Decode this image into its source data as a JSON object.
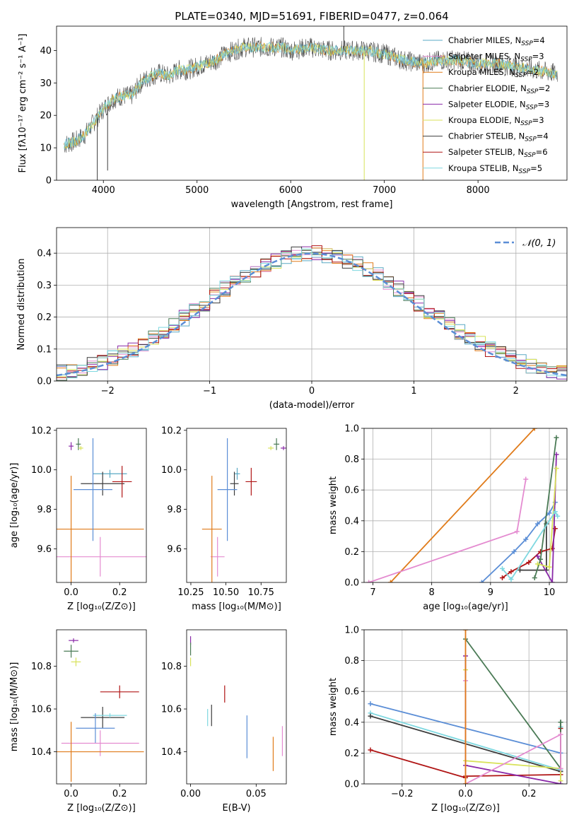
{
  "colors": {
    "ChabrierMILES": "#5aa9c4",
    "SalpeterMILES": "#e48bd0",
    "KroupaMILES": "#e07b1a",
    "ChabrierELODIE": "#4a7a55",
    "SalpeterELODIE": "#8a2aa8",
    "KroupaELODIE": "#d8e25a",
    "ChabrierSTELIB": "#3d3d3d",
    "SalpeterSTELIB": "#b01515",
    "KroupaSTELIB": "#7fd8e0",
    "miles_line": "#e8873a",
    "gauss": "#5b8ed6"
  },
  "chart_data": [
    {
      "id": "spectrum",
      "type": "line",
      "title": "PLATE=0340, MJD=51691, FIBERID=0477, z=0.064",
      "xlabel": "wavelength [Angstrom, rest frame]",
      "ylabel": "Flux [fλ10⁻¹⁷ erg cm⁻² s⁻¹ A⁻¹]",
      "xlim": [
        3500,
        8950
      ],
      "ylim": [
        0,
        47.5
      ],
      "xticks": [
        4000,
        5000,
        6000,
        7000,
        8000
      ],
      "yticks": [
        0,
        10,
        20,
        30,
        40
      ],
      "legend_position": "top-right",
      "legend": [
        {
          "key": "ChabrierMILES",
          "name": "Chabrier MILES",
          "n": "4"
        },
        {
          "key": "SalpeterMILES",
          "name": "Salpeter MILES",
          "n": "3"
        },
        {
          "key": "KroupaMILES",
          "name": "Kroupa MILES",
          "n": "2"
        },
        {
          "key": "ChabrierELODIE",
          "name": "Chabrier ELODIE",
          "n": "2"
        },
        {
          "key": "SalpeterELODIE",
          "name": "Salpeter ELODIE",
          "n": "3"
        },
        {
          "key": "KroupaELODIE",
          "name": "Kroupa ELODIE",
          "n": "3"
        },
        {
          "key": "ChabrierSTELIB",
          "name": "Chabrier STELIB",
          "n": "4"
        },
        {
          "key": "SalpeterSTELIB",
          "name": "Salpeter STELIB",
          "n": "6"
        },
        {
          "key": "KroupaSTELIB",
          "name": "Kroupa STELIB",
          "n": "5"
        }
      ],
      "continuum": [
        [
          3580,
          11
        ],
        [
          3700,
          12
        ],
        [
          3800,
          14
        ],
        [
          3900,
          18
        ],
        [
          4000,
          22
        ],
        [
          4100,
          25
        ],
        [
          4200,
          26
        ],
        [
          4300,
          26
        ],
        [
          4400,
          30
        ],
        [
          4500,
          32
        ],
        [
          4600,
          33
        ],
        [
          4700,
          32
        ],
        [
          4800,
          34
        ],
        [
          4900,
          34
        ],
        [
          5000,
          35
        ],
        [
          5100,
          36
        ],
        [
          5200,
          37
        ],
        [
          5300,
          39
        ],
        [
          5500,
          41
        ],
        [
          5700,
          41
        ],
        [
          5900,
          41
        ],
        [
          6000,
          40
        ],
        [
          6200,
          41
        ],
        [
          6400,
          40
        ],
        [
          6600,
          40
        ],
        [
          6800,
          40
        ],
        [
          7000,
          39
        ],
        [
          7200,
          37
        ],
        [
          7400,
          36
        ],
        [
          7600,
          37
        ],
        [
          7800,
          37
        ],
        [
          8000,
          36
        ],
        [
          8200,
          36
        ],
        [
          8400,
          35
        ],
        [
          8600,
          34
        ],
        [
          8800,
          33
        ]
      ],
      "spikes": [
        [
          3935,
          0
        ],
        [
          4045,
          3
        ],
        [
          6567,
          47.5
        ],
        [
          6785,
          0
        ],
        [
          7412,
          0
        ]
      ]
    },
    {
      "id": "residuals",
      "type": "area",
      "xlabel": "(data-model)/error",
      "ylabel": "Normed distribution",
      "xlim": [
        -2.5,
        2.5
      ],
      "ylim": [
        0,
        0.48
      ],
      "xticks": [
        -2,
        -1,
        0,
        1,
        2
      ],
      "xticklabels": [
        "−2",
        "−1",
        "0",
        "1",
        "2"
      ],
      "yticks": [
        0.0,
        0.1,
        0.2,
        0.3,
        0.4
      ],
      "yticklabels": [
        "0.0",
        "0.1",
        "0.2",
        "0.3",
        "0.4"
      ],
      "bin_width": 0.1,
      "legend_label": "𝒩(0, 1)",
      "legend_position": "top-right"
    },
    {
      "id": "age_vs_Z",
      "type": "scatter",
      "xlabel": "Z [log₁₀(Z/Z⊙)]",
      "ylabel": "age  [log₁₀(age/yr)]",
      "xlim": [
        -0.06,
        0.31
      ],
      "ylim": [
        9.43,
        10.21
      ],
      "xticks": [
        0.0,
        0.2
      ],
      "xticklabels": [
        "0.0",
        "0.2"
      ],
      "yticks": [
        9.6,
        9.8,
        10.0,
        10.2
      ],
      "yticklabels": [
        "9.6",
        "9.8",
        "10.0",
        "10.2"
      ],
      "points": [
        {
          "key": "ChabrierMILES",
          "x": 0.16,
          "xerr": 0.07,
          "y": 9.98,
          "yerr": 0.02
        },
        {
          "key": "SalpeterMILES",
          "x": 0.12,
          "xerr": 0.19,
          "y": 9.56,
          "yerr": 0.1
        },
        {
          "key": "KroupaMILES",
          "x": 0.0,
          "xerr": 0.3,
          "y": 9.7,
          "yerr": 0.27
        },
        {
          "key": "ChabrierELODIE",
          "x": 0.03,
          "xerr": 0.01,
          "y": 10.13,
          "yerr": 0.03
        },
        {
          "key": "SalpeterELODIE",
          "x": 0.0,
          "xerr": 0.01,
          "y": 10.12,
          "yerr": 0.02
        },
        {
          "key": "KroupaELODIE",
          "x": 0.04,
          "xerr": 0.01,
          "y": 10.11,
          "yerr": 0.01
        },
        {
          "key": "ChabrierSTELIB",
          "x": 0.13,
          "xerr": 0.09,
          "y": 9.93,
          "yerr": 0.06
        },
        {
          "key": "SalpeterSTELIB",
          "x": 0.21,
          "xerr": 0.04,
          "y": 9.94,
          "yerr": 0.08
        },
        {
          "key": "ChabrierMILES2",
          "color": "#5b8ed6",
          "x": 0.09,
          "xerr": 0.08,
          "y": 9.9,
          "yerr": 0.26
        }
      ]
    },
    {
      "id": "age_vs_mass",
      "type": "scatter",
      "xlabel": "mass [log₁₀(M/M⊙)]",
      "xlim": [
        10.22,
        10.93
      ],
      "ylim": [
        9.43,
        10.21
      ],
      "xticks": [
        10.25,
        10.5,
        10.75
      ],
      "xticklabels": [
        "10.25",
        "10.50",
        "10.75"
      ],
      "yticks": [
        9.6,
        9.8,
        10.0,
        10.2
      ],
      "yticklabels": [
        "9.6",
        "9.8",
        "10.0",
        "10.2"
      ],
      "points": [
        {
          "key": "ChabrierMILES",
          "x": 10.58,
          "xerr": 0.02,
          "y": 9.98,
          "yerr": 0.03
        },
        {
          "key": "SalpeterMILES",
          "x": 10.44,
          "xerr": 0.05,
          "y": 9.56,
          "yerr": 0.1
        },
        {
          "key": "KroupaMILES",
          "x": 10.4,
          "xerr": 0.07,
          "y": 9.7,
          "yerr": 0.27
        },
        {
          "key": "ChabrierELODIE",
          "x": 10.86,
          "xerr": 0.02,
          "y": 10.13,
          "yerr": 0.03
        },
        {
          "key": "SalpeterELODIE",
          "x": 10.91,
          "xerr": 0.02,
          "y": 10.11,
          "yerr": 0.01
        },
        {
          "key": "KroupaELODIE",
          "x": 10.82,
          "xerr": 0.02,
          "y": 10.11,
          "yerr": 0.01
        },
        {
          "key": "ChabrierSTELIB",
          "x": 10.56,
          "xerr": 0.03,
          "y": 9.93,
          "yerr": 0.06
        },
        {
          "key": "SalpeterSTELIB",
          "x": 10.68,
          "xerr": 0.04,
          "y": 9.94,
          "yerr": 0.07
        },
        {
          "key": "x",
          "color": "#5b8ed6",
          "x": 10.51,
          "xerr": 0.07,
          "y": 9.9,
          "yerr": 0.26
        }
      ]
    },
    {
      "id": "weight_vs_age",
      "type": "line",
      "xlabel": "age  [log₁₀(age/yr)]",
      "ylabel": "mass weight",
      "xlim": [
        6.85,
        10.3
      ],
      "ylim": [
        0,
        1.0
      ],
      "xticks": [
        7,
        8,
        9,
        10
      ],
      "xticklabels": [
        "7",
        "8",
        "9",
        "10"
      ],
      "yticks": [
        0.0,
        0.2,
        0.4,
        0.6,
        0.8,
        1.0
      ],
      "yticklabels": [
        "0.0",
        "0.2",
        "0.4",
        "0.6",
        "0.8",
        "1.0"
      ],
      "series": [
        {
          "color": "#e07b1a",
          "x": [
            7.3,
            9.75
          ],
          "y": [
            0.0,
            1.0
          ]
        },
        {
          "color": "#e48bd0",
          "x": [
            6.93,
            9.45,
            9.6
          ],
          "y": [
            0.0,
            0.33,
            0.67
          ]
        },
        {
          "color": "#5b8ed6",
          "x": [
            8.85,
            9.4,
            9.6,
            9.8,
            10.0,
            10.1
          ],
          "y": [
            0.0,
            0.2,
            0.28,
            0.38,
            0.45,
            0.52
          ]
        },
        {
          "color": "#3d3d3d",
          "x": [
            9.5,
            9.95,
            9.95
          ],
          "y": [
            0.08,
            0.08,
            0.38
          ]
        },
        {
          "color": "#b01515",
          "x": [
            9.2,
            9.35,
            9.65,
            9.85,
            10.05,
            10.1
          ],
          "y": [
            0.03,
            0.07,
            0.13,
            0.2,
            0.22,
            0.35
          ]
        },
        {
          "color": "#8a2aa8",
          "x": [
            9.8,
            10.05,
            10.12
          ],
          "y": [
            0.17,
            0.0,
            0.83
          ]
        },
        {
          "color": "#4a7a55",
          "x": [
            9.75,
            9.85,
            10.12
          ],
          "y": [
            0.03,
            0.15,
            0.94
          ]
        },
        {
          "color": "#d8e25a",
          "x": [
            9.8,
            10.0,
            10.12
          ],
          "y": [
            0.12,
            0.1,
            0.74
          ]
        },
        {
          "color": "#7fd8e0",
          "x": [
            9.2,
            9.35,
            10.1,
            10.14
          ],
          "y": [
            0.09,
            0.02,
            0.46,
            0.43
          ]
        }
      ]
    },
    {
      "id": "mass_vs_Z",
      "type": "scatter",
      "xlabel": "Z [log₁₀(Z/Z⊙)]",
      "ylabel": "mass [log₁₀(M/M⊙)]",
      "xlim": [
        -0.06,
        0.31
      ],
      "ylim": [
        10.25,
        10.97
      ],
      "xticks": [
        0.0,
        0.2
      ],
      "xticklabels": [
        "0.0",
        "0.2"
      ],
      "yticks": [
        10.4,
        10.6,
        10.8
      ],
      "yticklabels": [
        "10.4",
        "10.6",
        "10.8"
      ],
      "points": [
        {
          "key": "SalpeterELODIE",
          "x": 0.01,
          "xerr": 0.02,
          "y": 10.92,
          "yerr": 0.01
        },
        {
          "key": "ChabrierELODIE",
          "x": 0.0,
          "xerr": 0.03,
          "y": 10.87,
          "yerr": 0.03
        },
        {
          "key": "KroupaELODIE",
          "x": 0.02,
          "xerr": 0.02,
          "y": 10.82,
          "yerr": 0.02
        },
        {
          "key": "SalpeterSTELIB",
          "x": 0.2,
          "xerr": 0.08,
          "y": 10.68,
          "yerr": 0.03
        },
        {
          "key": "ChabrierSTELIB",
          "x": 0.13,
          "xerr": 0.09,
          "y": 10.56,
          "yerr": 0.05
        },
        {
          "key": "KroupaSTELIB",
          "x": 0.16,
          "xerr": 0.07,
          "y": 10.57,
          "yerr": 0.01
        },
        {
          "key": "x",
          "color": "#5b8ed6",
          "x": 0.1,
          "xerr": 0.08,
          "y": 10.51,
          "yerr": 0.07
        },
        {
          "key": "SalpeterMILES",
          "x": 0.12,
          "xerr": 0.16,
          "y": 10.44,
          "yerr": 0.06
        },
        {
          "key": "KroupaMILES",
          "x": 0.0,
          "xerr": 0.3,
          "y": 10.4,
          "yerr": 0.14
        }
      ]
    },
    {
      "id": "mass_vs_ebv",
      "type": "scatter",
      "xlabel": "E(B-V)",
      "xlim": [
        -0.003,
        0.073
      ],
      "ylim": [
        10.25,
        10.97
      ],
      "xticks": [
        0.0,
        0.05
      ],
      "xticklabels": [
        "0.00",
        "0.05"
      ],
      "yticks": [
        10.4,
        10.6,
        10.8
      ],
      "yticklabels": [
        "10.4",
        "10.6",
        "10.8"
      ],
      "points": [
        {
          "key": "SalpeterELODIE",
          "x": 0.0,
          "y": 10.92,
          "yerr": 0.02
        },
        {
          "key": "ChabrierELODIE",
          "x": 0.0,
          "y": 10.88,
          "yerr": 0.03
        },
        {
          "key": "KroupaELODIE",
          "x": 0.0,
          "y": 10.82,
          "yerr": 0.02
        },
        {
          "key": "SalpeterSTELIB",
          "x": 0.026,
          "y": 10.67,
          "yerr": 0.04
        },
        {
          "key": "ChabrierSTELIB",
          "x": 0.016,
          "y": 10.57,
          "yerr": 0.05
        },
        {
          "key": "KroupaSTELIB",
          "x": 0.013,
          "y": 10.56,
          "yerr": 0.04
        },
        {
          "key": "x",
          "color": "#5b8ed6",
          "x": 0.043,
          "y": 10.47,
          "yerr": 0.1
        },
        {
          "key": "KroupaMILES",
          "x": 0.063,
          "y": 10.39,
          "yerr": 0.08
        },
        {
          "key": "SalpeterMILES",
          "x": 0.07,
          "y": 10.45,
          "yerr": 0.07
        }
      ]
    },
    {
      "id": "weight_vs_Z",
      "type": "line",
      "xlabel": "Z [log₁₀(Z/Z⊙)]",
      "ylabel": "mass weight",
      "xlim": [
        -0.32,
        0.32
      ],
      "ylim": [
        0,
        1.0
      ],
      "xticks": [
        -0.2,
        0.0,
        0.2
      ],
      "xticklabels": [
        "−0.2",
        "0.0",
        "0.2"
      ],
      "yticks": [
        0.0,
        0.2,
        0.4,
        0.6,
        0.8,
        1.0
      ],
      "yticklabels": [
        "0.0",
        "0.2",
        "0.4",
        "0.6",
        "0.8",
        "1.0"
      ],
      "series": [
        {
          "color": "#5b8ed6",
          "x": [
            -0.3,
            0.3
          ],
          "y": [
            0.52,
            0.2
          ]
        },
        {
          "color": "#7fd8e0",
          "x": [
            -0.3,
            0.3,
            0.3
          ],
          "y": [
            0.46,
            0.09,
            0.37
          ]
        },
        {
          "color": "#3d3d3d",
          "x": [
            -0.3,
            0.3,
            0.3
          ],
          "y": [
            0.44,
            0.08,
            0.4
          ]
        },
        {
          "color": "#b01515",
          "x": [
            -0.3,
            0.0,
            0.0,
            0.3,
            0.3
          ],
          "y": [
            0.22,
            0.04,
            0.05,
            0.06,
            0.36
          ]
        },
        {
          "color": "#4a7a55",
          "x": [
            0.0,
            0.3,
            0.3
          ],
          "y": [
            0.94,
            0.1,
            0.4
          ]
        },
        {
          "color": "#d8e25a",
          "x": [
            0.0,
            0.0,
            0.3,
            0.3
          ],
          "y": [
            0.74,
            0.15,
            0.1,
            0.02
          ]
        },
        {
          "color": "#8a2aa8",
          "x": [
            0.0,
            0.0,
            0.3
          ],
          "y": [
            0.83,
            0.12,
            0.0
          ]
        },
        {
          "color": "#e48bd0",
          "x": [
            0.0,
            0.0,
            0.3,
            0.3
          ],
          "y": [
            0.67,
            0.0,
            0.32,
            0.1
          ]
        },
        {
          "color": "#e07b1a",
          "x": [
            0.0,
            0.0
          ],
          "y": [
            0.0,
            1.0
          ]
        }
      ]
    }
  ]
}
